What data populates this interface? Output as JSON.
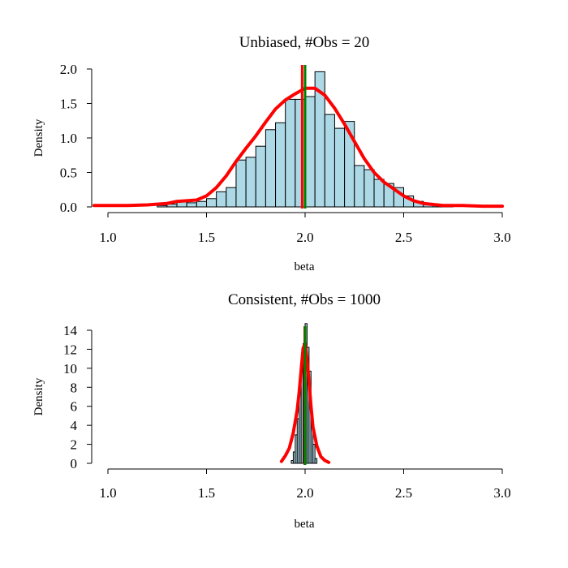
{
  "chart_data": [
    {
      "type": "bar",
      "subtype": "histogram-with-density",
      "title": "Unbiased, #Obs = 20",
      "xlabel": "beta",
      "ylabel": "Density",
      "xlim": [
        0.93,
        3.0
      ],
      "ylim": [
        0,
        2.0
      ],
      "x_ticks": [
        "1.0",
        "1.5",
        "2.0",
        "2.5",
        "3.0"
      ],
      "y_ticks": [
        "0.0",
        "0.5",
        "1.0",
        "1.5",
        "2.0"
      ],
      "bin_width": 0.05,
      "bin_starts": [
        1.25,
        1.3,
        1.35,
        1.4,
        1.45,
        1.5,
        1.55,
        1.6,
        1.65,
        1.7,
        1.75,
        1.8,
        1.85,
        1.9,
        1.95,
        2.0,
        2.05,
        2.1,
        2.15,
        2.2,
        2.25,
        2.3,
        2.35,
        2.4,
        2.45,
        2.5,
        2.55,
        2.6,
        2.65,
        2.7
      ],
      "values": [
        0.02,
        0.04,
        0.08,
        0.06,
        0.08,
        0.12,
        0.22,
        0.28,
        0.68,
        0.72,
        0.88,
        1.12,
        1.22,
        1.56,
        1.56,
        1.6,
        1.96,
        1.34,
        1.14,
        1.24,
        0.6,
        0.54,
        0.4,
        0.34,
        0.28,
        0.16,
        0.08,
        0.04,
        0.02,
        0.02
      ],
      "bar_color": "#add8e6",
      "density_curve": {
        "color": "#ff0000",
        "x": [
          0.93,
          1.0,
          1.1,
          1.2,
          1.3,
          1.35,
          1.4,
          1.45,
          1.5,
          1.55,
          1.6,
          1.65,
          1.7,
          1.75,
          1.8,
          1.85,
          1.9,
          1.95,
          2.0,
          2.05,
          2.1,
          2.15,
          2.2,
          2.25,
          2.3,
          2.35,
          2.4,
          2.45,
          2.5,
          2.55,
          2.6,
          2.7,
          2.8,
          2.9,
          3.0
        ],
        "y": [
          0.02,
          0.02,
          0.02,
          0.03,
          0.05,
          0.08,
          0.09,
          0.1,
          0.16,
          0.28,
          0.45,
          0.66,
          0.85,
          1.03,
          1.23,
          1.42,
          1.55,
          1.64,
          1.72,
          1.72,
          1.62,
          1.43,
          1.2,
          0.95,
          0.7,
          0.5,
          0.36,
          0.26,
          0.16,
          0.09,
          0.05,
          0.02,
          0.02,
          0.01,
          0.01
        ]
      },
      "vlines": [
        {
          "x": 1.985,
          "color": "#ff0000"
        },
        {
          "x": 2.0,
          "color": "#008000"
        }
      ]
    },
    {
      "type": "bar",
      "subtype": "histogram-with-density",
      "title": "Consistent, #Obs = 1000",
      "xlabel": "beta",
      "ylabel": "Density",
      "xlim": [
        0.93,
        3.0
      ],
      "ylim": [
        0,
        14
      ],
      "x_ticks": [
        "1.0",
        "1.5",
        "2.0",
        "2.5",
        "3.0"
      ],
      "y_ticks": [
        "0",
        "2",
        "4",
        "6",
        "8",
        "10",
        "12",
        "14"
      ],
      "bin_width": 0.01,
      "bin_starts": [
        1.93,
        1.94,
        1.95,
        1.96,
        1.97,
        1.98,
        1.99,
        2.0,
        2.01,
        2.02,
        2.03,
        2.04,
        2.05
      ],
      "values": [
        0.3,
        1.2,
        3.0,
        4.7,
        7.6,
        10.1,
        12.6,
        14.7,
        12.2,
        9.7,
        5.0,
        2.0,
        0.5
      ],
      "bar_color": "#add8e6",
      "density_curve": {
        "color": "#ff0000",
        "x": [
          1.88,
          1.9,
          1.92,
          1.94,
          1.96,
          1.97,
          1.98,
          1.99,
          2.0,
          2.01,
          2.02,
          2.03,
          2.04,
          2.06,
          2.08,
          2.1,
          2.12
        ],
        "y": [
          0.2,
          0.8,
          1.6,
          3.2,
          5.6,
          7.5,
          9.8,
          12.1,
          12.6,
          11.0,
          8.5,
          6.0,
          3.8,
          1.8,
          0.7,
          0.3,
          0.1
        ]
      },
      "vlines": [
        {
          "x": 1.998,
          "color": "#ff0000"
        },
        {
          "x": 2.0,
          "color": "#008000"
        }
      ]
    }
  ]
}
